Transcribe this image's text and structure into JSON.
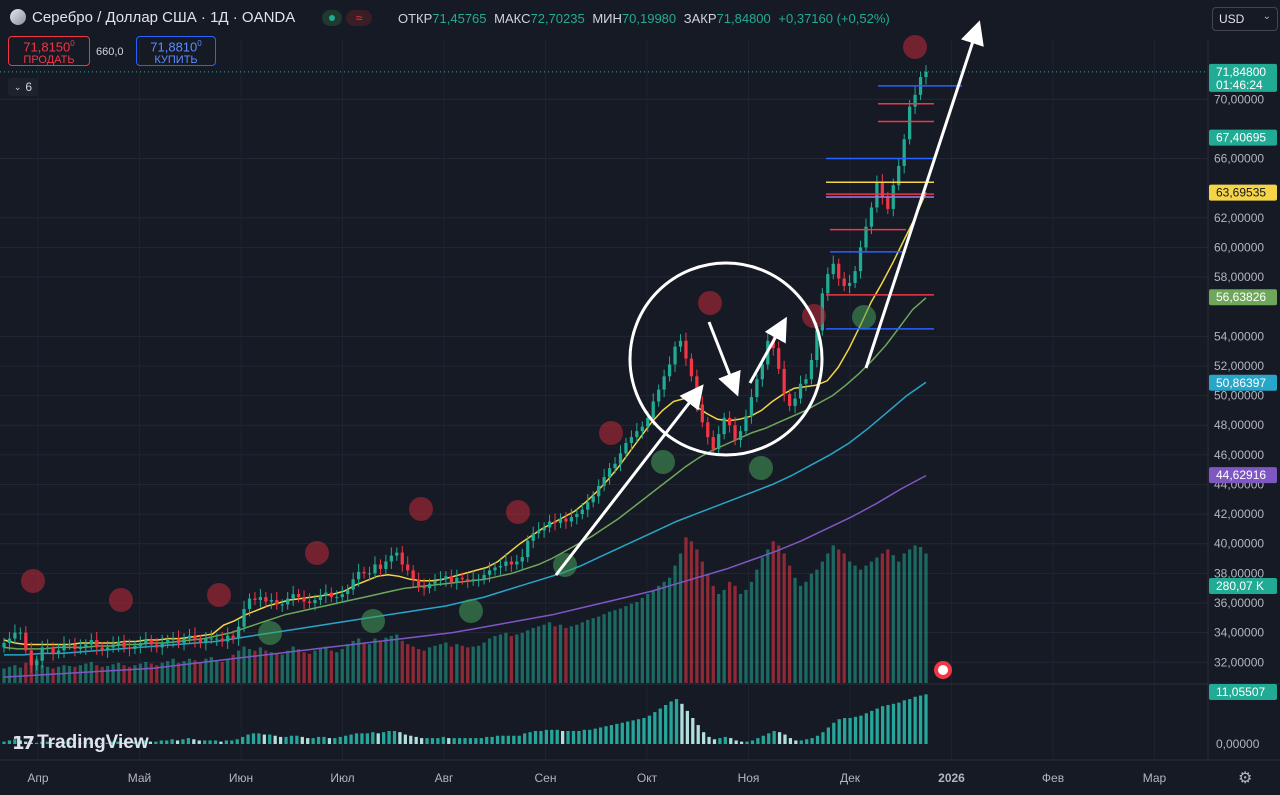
{
  "header": {
    "symbol_title": "Серебро / Доллар США · 1Д · OANDA",
    "ohlc": [
      {
        "key": "ОТКР",
        "value": "71,45765"
      },
      {
        "key": "МАКС",
        "value": "72,70235"
      },
      {
        "key": "МИН",
        "value": "70,19980"
      },
      {
        "key": "ЗАКР",
        "value": "71,84800"
      },
      {
        "key": "",
        "value": "+0,37160 (+0,52%)"
      }
    ]
  },
  "trade": {
    "sell_price": "71,8150",
    "sell_sup": "0",
    "sell_label": "ПРОДАТЬ",
    "spread": "660,0",
    "buy_price": "71,8810",
    "buy_sup": "0",
    "buy_label": "КУПИТЬ"
  },
  "indicators_count": "6",
  "currency": "USD",
  "colors": {
    "up": "#22ab94",
    "down": "#f23645",
    "background": "#161a25",
    "ma_fast": "#f5d547",
    "ma_mid": "#6fa75a",
    "ma_slow": "#27a6c9",
    "ma_long": "#7e57c2"
  },
  "chart_data": {
    "type": "candlestick",
    "ylim": [
      30.6,
      74.0
    ],
    "y_ticks": [
      "70,00000",
      "66,00000",
      "62,00000",
      "60,00000",
      "58,00000",
      "54,00000",
      "52,00000",
      "50,00000",
      "48,00000",
      "46,00000",
      "44,00000",
      "42,00000",
      "40,00000",
      "38,00000",
      "36,00000",
      "34,00000",
      "32,00000"
    ],
    "x_labels": [
      "Апр",
      "Май",
      "Июн",
      "Июл",
      "Авг",
      "Сен",
      "Окт",
      "Ноя",
      "Дек",
      "2026",
      "Фев",
      "Мар"
    ],
    "price_tags": [
      {
        "text": "71,84800",
        "sub": "01:46:24",
        "value": 71.848,
        "color": "#22ab94"
      },
      {
        "text": "67,40695",
        "value": 67.407,
        "color": "#22ab94"
      },
      {
        "text": "63,69535",
        "value": 63.695,
        "color": "#f5d547"
      },
      {
        "text": "56,63826",
        "value": 56.638,
        "color": "#6fa75a"
      },
      {
        "text": "50,86397",
        "value": 50.864,
        "color": "#27a6c9"
      },
      {
        "text": "44,62916",
        "value": 44.629,
        "color": "#7e57c2"
      }
    ],
    "volume_tag": "280,07 K",
    "oscillator_tag": "11,05507",
    "oscillator_zero": "0,00000",
    "close_series": [
      33.3,
      33.6,
      34.0,
      34.0,
      32.8,
      31.8,
      32.1,
      33.0,
      33.0,
      32.6,
      32.8,
      33.2,
      33.2,
      32.9,
      33.0,
      33.2,
      33.5,
      33.0,
      32.8,
      33.0,
      33.2,
      33.4,
      33.0,
      32.9,
      33.1,
      33.3,
      33.5,
      33.2,
      33.0,
      33.3,
      33.5,
      33.6,
      33.3,
      33.6,
      33.8,
      33.5,
      33.3,
      33.6,
      33.6,
      33.6,
      33.4,
      33.8,
      33.6,
      34.4,
      35.6,
      36.3,
      36.2,
      36.4,
      36.1,
      36.2,
      35.9,
      35.9,
      36.3,
      36.6,
      36.4,
      36.1,
      36.0,
      36.2,
      36.5,
      36.7,
      36.4,
      36.4,
      36.6,
      36.9,
      37.6,
      38.1,
      38.0,
      38.0,
      38.6,
      38.3,
      38.8,
      39.2,
      39.4,
      38.6,
      38.2,
      37.6,
      37.1,
      37.0,
      37.3,
      37.5,
      37.6,
      37.8,
      37.4,
      37.7,
      37.6,
      37.5,
      37.6,
      37.6,
      37.9,
      38.2,
      38.4,
      38.5,
      38.8,
      38.6,
      38.8,
      39.1,
      40.2,
      40.7,
      40.9,
      41.1,
      41.5,
      41.4,
      41.7,
      41.5,
      41.8,
      42.0,
      42.3,
      42.8,
      43.2,
      43.9,
      44.5,
      45.1,
      45.4,
      46.1,
      46.8,
      47.2,
      47.6,
      47.9,
      48.5,
      49.6,
      50.4,
      51.3,
      52.1,
      53.3,
      53.7,
      52.5,
      51.3,
      49.4,
      48.2,
      47.2,
      46.4,
      47.4,
      48.5,
      48.0,
      47.0,
      47.6,
      48.6,
      49.9,
      51.1,
      52.1,
      53.7,
      53.2,
      51.8,
      50.1,
      49.3,
      49.8,
      50.8,
      51.1,
      52.4,
      54.4,
      56.9,
      58.2,
      58.9,
      57.9,
      57.4,
      57.6,
      58.4,
      60.0,
      61.4,
      62.7,
      64.4,
      63.4,
      62.6,
      64.2,
      65.5,
      67.3,
      69.5,
      70.3,
      71.5,
      71.85
    ],
    "ma_fast": [
      33.5,
      33.3,
      33.2,
      33.2,
      33.2,
      33.2,
      33.2,
      33.3,
      33.3,
      33.3,
      33.3,
      33.4,
      33.4,
      33.5,
      33.5,
      33.6,
      33.6,
      33.7,
      33.8,
      33.9,
      34.5,
      34.8,
      35.2,
      35.5,
      35.8,
      36.0,
      36.2,
      36.3,
      36.4,
      36.5,
      36.6,
      36.8,
      37.2,
      37.5,
      37.8,
      37.9,
      37.8,
      37.6,
      37.5,
      37.5,
      37.6,
      37.8,
      38.0,
      38.2,
      38.4,
      38.8,
      39.4,
      40.0,
      40.5,
      41.0,
      41.4,
      41.8,
      42.2,
      42.8,
      43.5,
      44.3,
      45.2,
      46.2,
      47.2,
      48.2,
      49.0,
      49.6,
      49.8,
      49.3,
      48.8,
      48.4,
      48.3,
      48.4,
      48.6,
      49.0,
      49.6,
      50.1,
      50.5,
      50.6,
      50.7,
      51.0,
      51.9,
      53.2,
      54.7,
      56.3,
      57.6,
      59.0,
      60.5,
      62.0,
      63.7
    ],
    "ma_mid": [
      33.0,
      32.9,
      32.9,
      32.9,
      33.0,
      33.0,
      33.0,
      33.1,
      33.1,
      33.2,
      33.2,
      33.3,
      33.3,
      33.4,
      33.5,
      33.6,
      33.8,
      34.0,
      34.3,
      34.6,
      34.9,
      35.2,
      35.4,
      35.6,
      35.8,
      36.0,
      36.2,
      36.4,
      36.6,
      36.8,
      37.0,
      37.1,
      37.2,
      37.3,
      37.4,
      37.5,
      37.6,
      37.8,
      38.0,
      38.3,
      38.6,
      39.0,
      39.5,
      40.0,
      40.5,
      41.1,
      41.7,
      42.4,
      43.1,
      43.8,
      44.5,
      45.2,
      45.8,
      46.3,
      46.7,
      47.1,
      47.5,
      47.8,
      48.2,
      48.6,
      49.0,
      49.5,
      50.0,
      50.7,
      51.5,
      52.4,
      53.4,
      54.6,
      55.8,
      56.6
    ],
    "ma_slow": [
      32.5,
      32.5,
      32.6,
      32.6,
      32.7,
      32.8,
      32.9,
      33.0,
      33.1,
      33.2,
      33.3,
      33.4,
      33.6,
      33.8,
      34.0,
      34.2,
      34.4,
      34.6,
      34.8,
      35.0,
      35.2,
      35.4,
      35.6,
      35.8,
      36.1,
      36.4,
      36.8,
      37.2,
      37.6,
      38.0,
      38.5,
      39.1,
      39.7,
      40.3,
      40.9,
      41.5,
      42.0,
      42.5,
      43.0,
      43.5,
      44.0,
      44.6,
      45.3,
      46.0,
      46.8,
      47.8,
      48.9,
      50.0,
      50.9
    ],
    "ma_long": [
      31.0,
      31.1,
      31.2,
      31.3,
      31.4,
      31.5,
      31.6,
      31.8,
      32.0,
      32.2,
      32.4,
      32.6,
      32.8,
      33.0,
      33.2,
      33.4,
      33.6,
      33.8,
      34.0,
      34.3,
      34.6,
      34.9,
      35.2,
      35.6,
      36.0,
      36.4,
      36.8,
      37.3,
      37.8,
      38.3,
      38.9,
      39.5,
      40.2,
      41.0,
      41.8,
      42.7,
      43.7,
      44.6
    ],
    "volume_series": [
      18,
      20,
      22,
      19,
      25,
      28,
      30,
      22,
      20,
      18,
      20,
      22,
      21,
      20,
      22,
      24,
      26,
      22,
      20,
      21,
      23,
      25,
      22,
      20,
      22,
      24,
      26,
      24,
      22,
      25,
      27,
      30,
      25,
      27,
      30,
      28,
      25,
      30,
      32,
      28,
      26,
      30,
      35,
      40,
      45,
      42,
      40,
      44,
      40,
      38,
      36,
      35,
      40,
      45,
      42,
      38,
      36,
      40,
      42,
      45,
      40,
      38,
      42,
      48,
      52,
      55,
      50,
      48,
      55,
      52,
      56,
      58,
      60,
      52,
      48,
      45,
      42,
      40,
      44,
      46,
      48,
      50,
      45,
      48,
      46,
      44,
      45,
      46,
      50,
      55,
      58,
      60,
      62,
      58,
      60,
      62,
      65,
      68,
      70,
      72,
      75,
      70,
      72,
      68,
      70,
      72,
      75,
      78,
      80,
      82,
      85,
      88,
      90,
      92,
      95,
      98,
      100,
      105,
      110,
      115,
      120,
      125,
      130,
      145,
      160,
      180,
      175,
      165,
      150,
      135,
      120,
      110,
      115,
      125,
      120,
      110,
      115,
      125,
      140,
      155,
      165,
      175,
      170,
      160,
      145,
      130,
      120,
      125,
      135,
      140,
      150,
      160,
      170,
      165,
      160,
      150,
      145,
      140,
      145,
      150,
      155,
      160,
      165,
      158,
      150,
      160,
      165,
      170,
      168,
      160,
      155,
      150
    ],
    "oscillator_series": [
      2,
      3,
      4,
      3,
      2,
      1,
      1,
      2,
      2,
      1,
      1,
      2,
      2,
      1,
      1,
      2,
      2,
      1,
      1,
      1,
      2,
      2,
      1,
      1,
      2,
      2,
      3,
      2,
      2,
      3,
      3,
      4,
      3,
      4,
      5,
      4,
      3,
      3,
      3,
      3,
      2,
      3,
      3,
      4,
      6,
      8,
      9,
      9,
      8,
      8,
      7,
      6,
      6,
      7,
      7,
      6,
      5,
      5,
      6,
      6,
      5,
      5,
      6,
      7,
      8,
      9,
      9,
      9,
      10,
      9,
      10,
      11,
      11,
      10,
      8,
      7,
      6,
      5,
      5,
      5,
      5,
      6,
      5,
      5,
      5,
      5,
      5,
      5,
      5,
      6,
      6,
      7,
      7,
      7,
      7,
      7,
      9,
      10,
      11,
      11,
      12,
      12,
      12,
      11,
      11,
      11,
      11,
      12,
      12,
      13,
      14,
      15,
      16,
      17,
      18,
      19,
      20,
      21,
      22,
      24,
      27,
      30,
      33,
      36,
      38,
      34,
      28,
      22,
      16,
      10,
      6,
      4,
      5,
      6,
      5,
      3,
      2,
      2,
      3,
      5,
      7,
      9,
      11,
      10,
      8,
      5,
      3,
      3,
      4,
      5,
      7,
      10,
      14,
      18,
      21,
      22,
      22,
      23,
      24,
      26,
      28,
      30,
      32,
      33,
      34,
      35,
      37,
      38,
      40,
      41,
      42
    ]
  }
}
